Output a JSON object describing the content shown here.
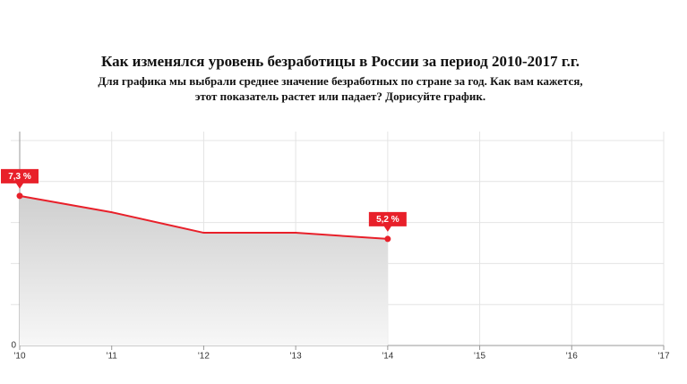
{
  "chart_data": {
    "type": "area-line",
    "title": "Как изменялся уровень безработицы в России за период 2010-2017 г.г.",
    "subtitle": [
      "Для графика мы выбрали среднее значение безработных по стране за год. Как вам кажется,",
      "этот показатель растет или падает? Дорисуйте график."
    ],
    "categories": [
      "'10",
      "'11",
      "'12",
      "'13",
      "'14",
      "'15",
      "'16",
      "'17"
    ],
    "values": [
      7.3,
      6.5,
      5.5,
      5.5,
      5.2,
      null,
      null,
      null
    ],
    "value_labels": [
      "7,3 %",
      null,
      null,
      null,
      "5,2 %",
      null,
      null,
      null
    ],
    "color": "#e8202a",
    "ylim": [
      0,
      10
    ],
    "yticks": [
      0
    ],
    "ygrid": [
      2,
      4,
      6,
      8,
      10
    ],
    "grid": true
  }
}
